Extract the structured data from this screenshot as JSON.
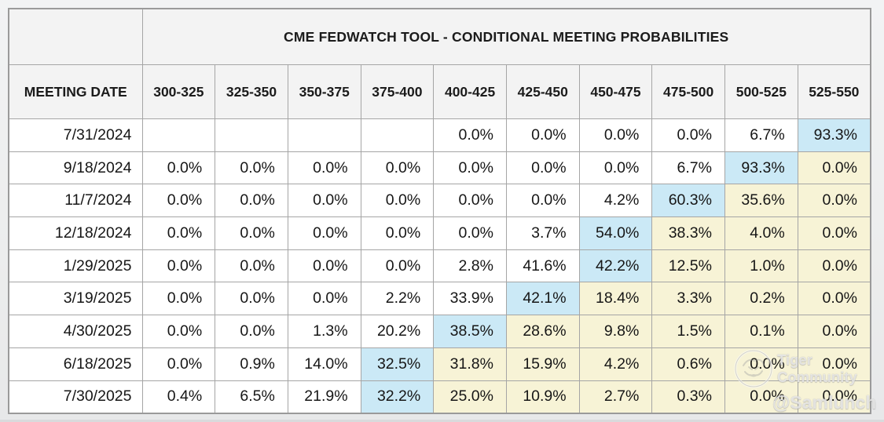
{
  "table": {
    "title": "CME FEDWATCH TOOL - CONDITIONAL MEETING PROBABILITIES",
    "date_column_header": "MEETING DATE",
    "range_columns": [
      "300-325",
      "325-350",
      "350-375",
      "375-400",
      "400-425",
      "425-450",
      "450-475",
      "475-500",
      "500-525",
      "525-550"
    ],
    "rows": [
      {
        "date": "7/31/2024",
        "values": [
          "",
          "",
          "",
          "",
          "0.0%",
          "0.0%",
          "0.0%",
          "0.0%",
          "6.7%",
          "93.3%"
        ],
        "highlights": [
          "none",
          "none",
          "none",
          "none",
          "none",
          "none",
          "none",
          "none",
          "none",
          "blue"
        ]
      },
      {
        "date": "9/18/2024",
        "values": [
          "0.0%",
          "0.0%",
          "0.0%",
          "0.0%",
          "0.0%",
          "0.0%",
          "0.0%",
          "6.7%",
          "93.3%",
          "0.0%"
        ],
        "highlights": [
          "none",
          "none",
          "none",
          "none",
          "none",
          "none",
          "none",
          "none",
          "blue",
          "yellow"
        ]
      },
      {
        "date": "11/7/2024",
        "values": [
          "0.0%",
          "0.0%",
          "0.0%",
          "0.0%",
          "0.0%",
          "0.0%",
          "4.2%",
          "60.3%",
          "35.6%",
          "0.0%"
        ],
        "highlights": [
          "none",
          "none",
          "none",
          "none",
          "none",
          "none",
          "none",
          "blue",
          "yellow",
          "yellow"
        ]
      },
      {
        "date": "12/18/2024",
        "values": [
          "0.0%",
          "0.0%",
          "0.0%",
          "0.0%",
          "0.0%",
          "3.7%",
          "54.0%",
          "38.3%",
          "4.0%",
          "0.0%"
        ],
        "highlights": [
          "none",
          "none",
          "none",
          "none",
          "none",
          "none",
          "blue",
          "yellow",
          "yellow",
          "yellow"
        ]
      },
      {
        "date": "1/29/2025",
        "values": [
          "0.0%",
          "0.0%",
          "0.0%",
          "0.0%",
          "2.8%",
          "41.6%",
          "42.2%",
          "12.5%",
          "1.0%",
          "0.0%"
        ],
        "highlights": [
          "none",
          "none",
          "none",
          "none",
          "none",
          "none",
          "blue",
          "yellow",
          "yellow",
          "yellow"
        ]
      },
      {
        "date": "3/19/2025",
        "values": [
          "0.0%",
          "0.0%",
          "0.0%",
          "2.2%",
          "33.9%",
          "42.1%",
          "18.4%",
          "3.3%",
          "0.2%",
          "0.0%"
        ],
        "highlights": [
          "none",
          "none",
          "none",
          "none",
          "none",
          "blue",
          "yellow",
          "yellow",
          "yellow",
          "yellow"
        ]
      },
      {
        "date": "4/30/2025",
        "values": [
          "0.0%",
          "0.0%",
          "1.3%",
          "20.2%",
          "38.5%",
          "28.6%",
          "9.8%",
          "1.5%",
          "0.1%",
          "0.0%"
        ],
        "highlights": [
          "none",
          "none",
          "none",
          "none",
          "blue",
          "yellow",
          "yellow",
          "yellow",
          "yellow",
          "yellow"
        ]
      },
      {
        "date": "6/18/2025",
        "values": [
          "0.0%",
          "0.9%",
          "14.0%",
          "32.5%",
          "31.8%",
          "15.9%",
          "4.2%",
          "0.6%",
          "0.0%",
          "0.0%"
        ],
        "highlights": [
          "none",
          "none",
          "none",
          "blue",
          "yellow",
          "yellow",
          "yellow",
          "yellow",
          "yellow",
          "yellow"
        ]
      },
      {
        "date": "7/30/2025",
        "values": [
          "0.4%",
          "6.5%",
          "21.9%",
          "32.2%",
          "25.0%",
          "10.9%",
          "2.7%",
          "0.3%",
          "0.0%",
          "0.0%"
        ],
        "highlights": [
          "none",
          "none",
          "none",
          "blue",
          "yellow",
          "yellow",
          "yellow",
          "yellow",
          "yellow",
          "yellow"
        ]
      }
    ]
  },
  "colors": {
    "highlight_blue": "#cbe9f6",
    "highlight_yellow": "#f7f3d6",
    "header_bg": "#f3f3f3",
    "cell_bg": "#ffffff",
    "border": "#a5a5a5"
  },
  "watermark": {
    "brand": "Tiger Community",
    "handle": "@Samlunch",
    "logo": "tiger-logo-icon"
  },
  "chart_data": {
    "type": "table",
    "title": "CME FEDWATCH TOOL - CONDITIONAL MEETING PROBABILITIES",
    "row_header": "MEETING DATE",
    "columns": [
      "300-325",
      "325-350",
      "350-375",
      "375-400",
      "400-425",
      "425-450",
      "450-475",
      "475-500",
      "500-525",
      "525-550"
    ],
    "rows": [
      {
        "meeting_date": "7/31/2024",
        "values": [
          null,
          null,
          null,
          null,
          0.0,
          0.0,
          0.0,
          0.0,
          6.7,
          93.3
        ]
      },
      {
        "meeting_date": "9/18/2024",
        "values": [
          0.0,
          0.0,
          0.0,
          0.0,
          0.0,
          0.0,
          0.0,
          6.7,
          93.3,
          0.0
        ]
      },
      {
        "meeting_date": "11/7/2024",
        "values": [
          0.0,
          0.0,
          0.0,
          0.0,
          0.0,
          0.0,
          4.2,
          60.3,
          35.6,
          0.0
        ]
      },
      {
        "meeting_date": "12/18/2024",
        "values": [
          0.0,
          0.0,
          0.0,
          0.0,
          0.0,
          3.7,
          54.0,
          38.3,
          4.0,
          0.0
        ]
      },
      {
        "meeting_date": "1/29/2025",
        "values": [
          0.0,
          0.0,
          0.0,
          0.0,
          2.8,
          41.6,
          42.2,
          12.5,
          1.0,
          0.0
        ]
      },
      {
        "meeting_date": "3/19/2025",
        "values": [
          0.0,
          0.0,
          0.0,
          2.2,
          33.9,
          42.1,
          18.4,
          3.3,
          0.2,
          0.0
        ]
      },
      {
        "meeting_date": "4/30/2025",
        "values": [
          0.0,
          0.0,
          1.3,
          20.2,
          38.5,
          28.6,
          9.8,
          1.5,
          0.1,
          0.0
        ]
      },
      {
        "meeting_date": "6/18/2025",
        "values": [
          0.0,
          0.9,
          14.0,
          32.5,
          31.8,
          15.9,
          4.2,
          0.6,
          0.0,
          0.0
        ]
      },
      {
        "meeting_date": "7/30/2025",
        "values": [
          0.4,
          6.5,
          21.9,
          32.2,
          25.0,
          10.9,
          2.7,
          0.3,
          0.0,
          0.0
        ]
      }
    ],
    "units": "percent",
    "highlight_blue_cells": "highest probability per meeting date",
    "highlight_yellow_cells": "ranges above the modal rate"
  }
}
